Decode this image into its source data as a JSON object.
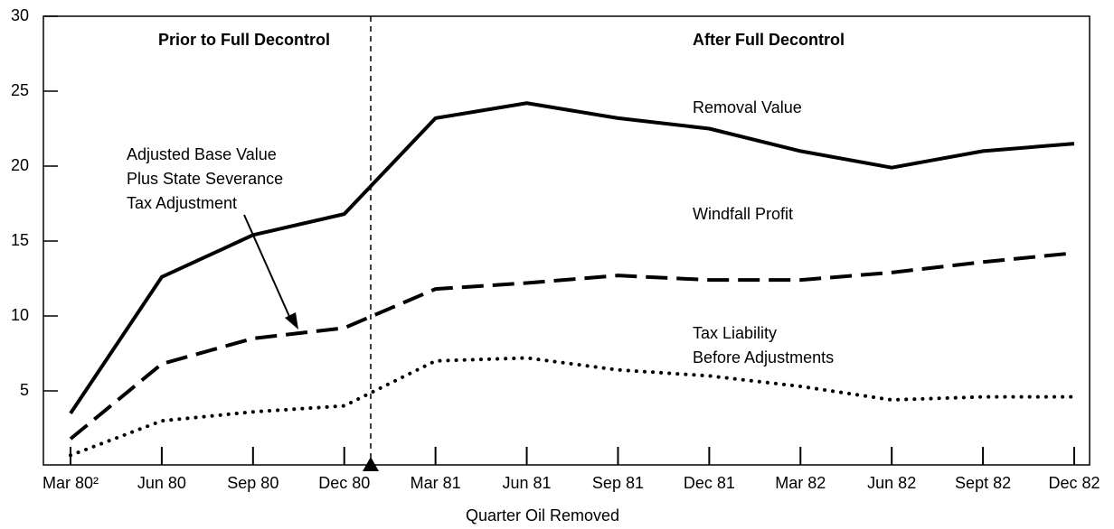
{
  "chart_data": {
    "type": "line",
    "categories": [
      "Mar 80²",
      "Jun 80",
      "Sep 80",
      "Dec 80",
      "Mar 81",
      "Jun 81",
      "Sep 81",
      "Dec 81",
      "Mar 82",
      "Jun 82",
      "Sept 82",
      "Dec  82"
    ],
    "series": [
      {
        "color": "#000",
        "style": "solid",
        "values": [
          3.5,
          12.6,
          15.4,
          16.8,
          23.2,
          24.2,
          23.2,
          22.5,
          21.0,
          19.9,
          21.0,
          21.5
        ]
      },
      {
        "color": "#000",
        "style": "dashed",
        "values": [
          1.8,
          6.8,
          8.5,
          9.2,
          11.8,
          12.2,
          12.7,
          12.4,
          12.4,
          12.9,
          13.6,
          14.2
        ]
      },
      {
        "color": "#000",
        "style": "dotted",
        "values": [
          0.7,
          3.0,
          3.6,
          4.0,
          7.0,
          7.2,
          6.4,
          6.0,
          5.3,
          4.4,
          4.6,
          4.6
        ]
      }
    ],
    "ylim": [
      0,
      30
    ],
    "yticks": [
      5,
      10,
      15,
      20,
      25,
      30
    ],
    "x_label": "Quarter Oil Removed",
    "annotations": [
      {
        "lines": [
          "Prior to Full  Decontrol"
        ],
        "bold": true
      },
      {
        "lines": [
          "After Full  Decontrol"
        ],
        "bold": true
      },
      {
        "lines": [
          "Removal Value"
        ]
      },
      {
        "lines": [
          "Windfall Profit"
        ]
      },
      {
        "lines": [
          "Adjusted Base Value",
          "Plus State Severance",
          "Tax Adjustment"
        ]
      },
      {
        "lines": [
          "Tax Liability",
          "Before Adjustments"
        ]
      }
    ]
  }
}
